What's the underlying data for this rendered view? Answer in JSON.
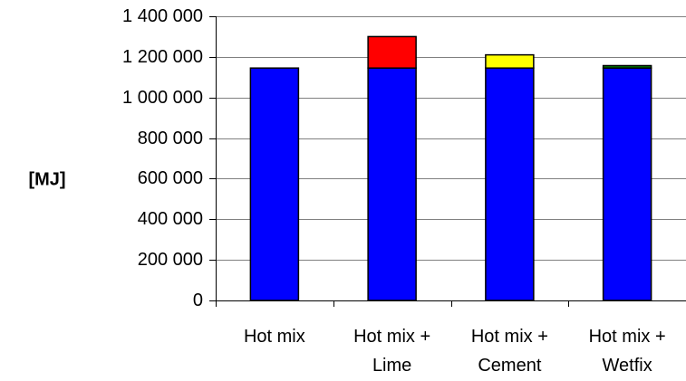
{
  "chart_data": {
    "type": "bar",
    "stacked": true,
    "title": "",
    "xlabel": "",
    "ylabel": "[MJ]",
    "ylim": [
      0,
      1400000
    ],
    "y_ticks": [
      0,
      200000,
      400000,
      600000,
      800000,
      1000000,
      1200000,
      1400000
    ],
    "y_tick_labels": [
      "0",
      "200 000",
      "400 000",
      "600 000",
      "800 000",
      "1 000 000",
      "1 200 000",
      "1 400 000"
    ],
    "grid": {
      "horizontal": true,
      "vertical": false
    },
    "legend": "none",
    "categories": [
      [
        "Hot mix"
      ],
      [
        "Hot mix +",
        "Lime"
      ],
      [
        "Hot mix +",
        "Cement"
      ],
      [
        "Hot mix +",
        "Wetfix"
      ]
    ],
    "series": [
      {
        "values": [
          1145000,
          1145000,
          1145000,
          1145000
        ],
        "color": "#0000ff"
      },
      {
        "values": [
          0,
          155000,
          0,
          0
        ],
        "color": "#ff0000"
      },
      {
        "values": [
          0,
          0,
          65000,
          0
        ],
        "color": "#ffff00"
      },
      {
        "values": [
          0,
          0,
          0,
          12000
        ],
        "color": "#008000"
      }
    ]
  }
}
